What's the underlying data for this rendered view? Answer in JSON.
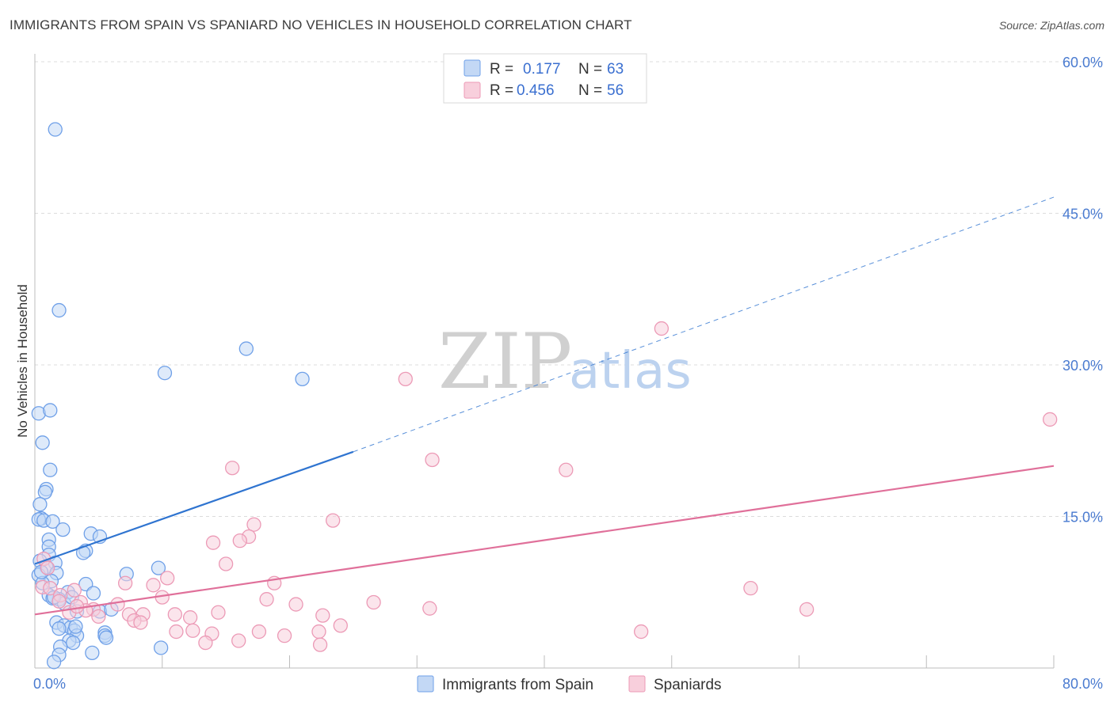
{
  "header": {
    "title": "IMMIGRANTS FROM SPAIN VS SPANIARD NO VEHICLES IN HOUSEHOLD CORRELATION CHART",
    "source": "Source: ZipAtlas.com"
  },
  "watermark": {
    "zip": "ZIP",
    "atlas": "atlas"
  },
  "legend": {
    "rows": [
      {
        "r_label": "R =",
        "r_value": "0.177",
        "n_label": "N =",
        "n_value": "63"
      },
      {
        "r_label": "R =",
        "r_value": "0.456",
        "n_label": "N =",
        "n_value": "56"
      }
    ]
  },
  "chart_data": {
    "type": "scatter",
    "ylabel": "No Vehicles in Household",
    "xlim": [
      0,
      80
    ],
    "ylim": [
      0,
      60
    ],
    "x_tick_labels": [
      {
        "value": 0,
        "label": "0.0%"
      },
      {
        "value": 80,
        "label": "80.0%"
      }
    ],
    "y_tick_labels": [
      {
        "value": 15,
        "label": "15.0%"
      },
      {
        "value": 30,
        "label": "30.0%"
      },
      {
        "value": 45,
        "label": "45.0%"
      },
      {
        "value": 60,
        "label": "60.0%"
      }
    ],
    "grid": true,
    "series": [
      {
        "name": "Immigrants from Spain",
        "color": "#6fa0e8",
        "fill": "#c3d8f5",
        "trend_color": "#2f74d0",
        "trend": {
          "x0": 0,
          "y0": 10.3,
          "x1": 25,
          "y1": 21.4,
          "dash_to_x": 80,
          "dash_to_y": 46.6
        },
        "points": [
          [
            1.6,
            53.3
          ],
          [
            1.9,
            35.4
          ],
          [
            0.3,
            25.2
          ],
          [
            1.2,
            25.5
          ],
          [
            0.6,
            22.3
          ],
          [
            1.2,
            19.6
          ],
          [
            0.9,
            17.7
          ],
          [
            0.8,
            17.4
          ],
          [
            0.4,
            16.2
          ],
          [
            0.5,
            14.8
          ],
          [
            0.3,
            14.7
          ],
          [
            0.7,
            14.6
          ],
          [
            1.4,
            14.5
          ],
          [
            2.2,
            13.7
          ],
          [
            4.4,
            13.3
          ],
          [
            5.1,
            13.0
          ],
          [
            1.1,
            12.7
          ],
          [
            1.1,
            12.0
          ],
          [
            4.0,
            11.6
          ],
          [
            3.8,
            11.4
          ],
          [
            1.1,
            11.2
          ],
          [
            0.4,
            10.6
          ],
          [
            1.6,
            10.4
          ],
          [
            0.9,
            10.0
          ],
          [
            9.7,
            9.9
          ],
          [
            1.7,
            9.4
          ],
          [
            7.2,
            9.3
          ],
          [
            0.3,
            9.2
          ],
          [
            1.3,
            8.6
          ],
          [
            0.6,
            8.4
          ],
          [
            4.0,
            8.3
          ],
          [
            2.6,
            7.5
          ],
          [
            4.6,
            7.4
          ],
          [
            1.1,
            7.2
          ],
          [
            1.9,
            6.8
          ],
          [
            1.4,
            6.9
          ],
          [
            2.3,
            6.4
          ],
          [
            3.3,
            5.6
          ],
          [
            5.1,
            5.6
          ],
          [
            1.7,
            4.5
          ],
          [
            2.3,
            4.2
          ],
          [
            2.8,
            4.0
          ],
          [
            3.1,
            3.7
          ],
          [
            1.9,
            3.9
          ],
          [
            5.5,
            3.5
          ],
          [
            3.3,
            3.2
          ],
          [
            5.5,
            3.2
          ],
          [
            2.7,
            2.7
          ],
          [
            5.6,
            3.0
          ],
          [
            3.0,
            2.5
          ],
          [
            2.0,
            2.1
          ],
          [
            9.9,
            2.0
          ],
          [
            4.5,
            1.5
          ],
          [
            1.9,
            1.3
          ],
          [
            1.5,
            0.6
          ],
          [
            10.2,
            29.2
          ],
          [
            16.6,
            31.6
          ],
          [
            21.0,
            28.6
          ],
          [
            0.5,
            9.5
          ],
          [
            2.9,
            7.0
          ],
          [
            1.5,
            7.0
          ],
          [
            3.2,
            4.1
          ],
          [
            6.0,
            5.8
          ]
        ]
      },
      {
        "name": "Spaniards",
        "color": "#ec9ab6",
        "fill": "#f8cfdc",
        "trend_color": "#e0709a",
        "trend": {
          "x0": 0,
          "y0": 5.3,
          "x1": 80,
          "y1": 20.0
        },
        "points": [
          [
            49.2,
            33.6
          ],
          [
            29.1,
            28.6
          ],
          [
            31.2,
            20.6
          ],
          [
            15.5,
            19.8
          ],
          [
            41.7,
            19.6
          ],
          [
            79.7,
            24.6
          ],
          [
            17.2,
            14.2
          ],
          [
            23.4,
            14.6
          ],
          [
            16.8,
            13.0
          ],
          [
            14.0,
            12.4
          ],
          [
            16.1,
            12.6
          ],
          [
            15.0,
            10.3
          ],
          [
            0.7,
            10.8
          ],
          [
            1.0,
            9.9
          ],
          [
            10.4,
            8.9
          ],
          [
            7.1,
            8.4
          ],
          [
            18.8,
            8.4
          ],
          [
            0.6,
            8.0
          ],
          [
            1.2,
            7.9
          ],
          [
            3.1,
            7.7
          ],
          [
            56.2,
            7.9
          ],
          [
            10.0,
            7.0
          ],
          [
            2.0,
            7.2
          ],
          [
            9.3,
            8.2
          ],
          [
            18.2,
            6.8
          ],
          [
            3.6,
            6.5
          ],
          [
            6.5,
            6.3
          ],
          [
            26.6,
            6.5
          ],
          [
            20.5,
            6.3
          ],
          [
            31.0,
            5.9
          ],
          [
            4.6,
            5.8
          ],
          [
            7.4,
            5.3
          ],
          [
            8.5,
            5.3
          ],
          [
            11.0,
            5.3
          ],
          [
            14.4,
            5.5
          ],
          [
            2.7,
            5.5
          ],
          [
            4.0,
            5.7
          ],
          [
            12.2,
            5.0
          ],
          [
            22.6,
            5.2
          ],
          [
            60.6,
            5.8
          ],
          [
            7.8,
            4.7
          ],
          [
            8.3,
            4.5
          ],
          [
            24.0,
            4.2
          ],
          [
            12.4,
            3.7
          ],
          [
            11.1,
            3.6
          ],
          [
            13.9,
            3.4
          ],
          [
            17.6,
            3.6
          ],
          [
            19.6,
            3.2
          ],
          [
            22.3,
            3.6
          ],
          [
            16.0,
            2.7
          ],
          [
            13.4,
            2.5
          ],
          [
            22.4,
            2.3
          ],
          [
            47.6,
            3.6
          ],
          [
            5.0,
            5.1
          ],
          [
            3.3,
            6.1
          ],
          [
            1.9,
            6.6
          ]
        ]
      }
    ]
  }
}
